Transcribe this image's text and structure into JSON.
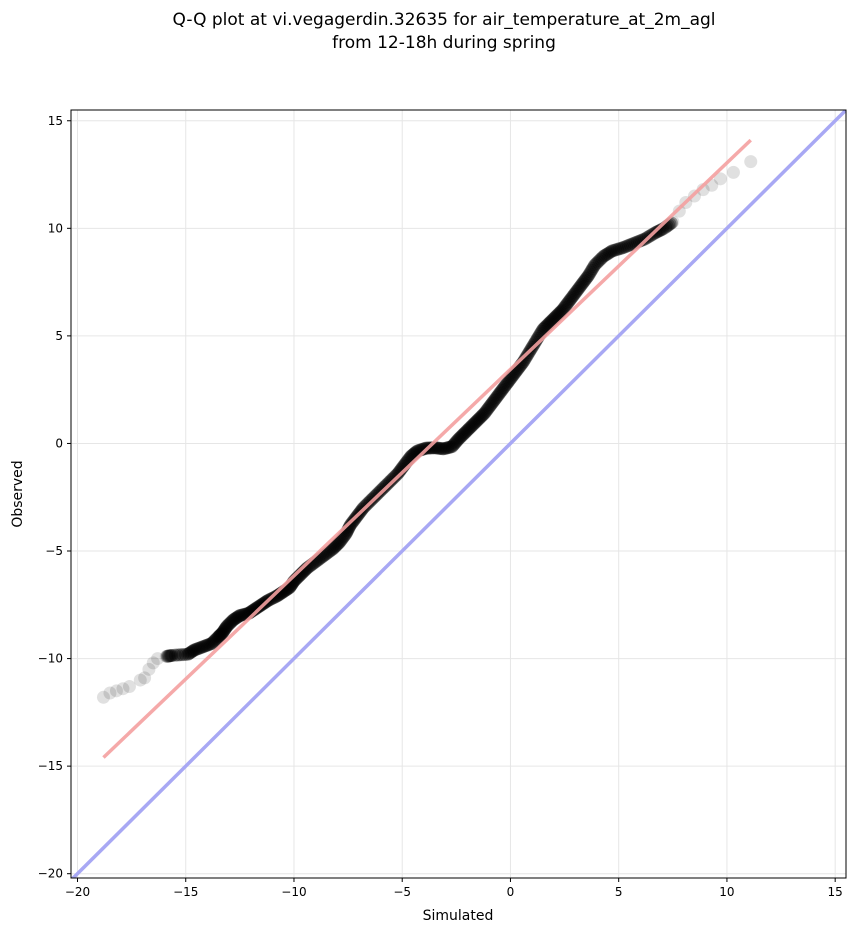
{
  "chart_data": {
    "type": "scatter",
    "title_line1": "Q-Q plot at vi.vegagerdin.32635 for air_temperature_at_2m_agl",
    "title_line2": "from 12-18h during spring",
    "xlabel": "Simulated",
    "ylabel": "Observed",
    "xlim": [
      -20.3,
      15.5
    ],
    "ylim": [
      -20.2,
      15.5
    ],
    "xticks": [
      -20,
      -15,
      -10,
      -5,
      0,
      5,
      10,
      15
    ],
    "yticks": [
      -20,
      -15,
      -10,
      -5,
      0,
      5,
      10,
      15
    ],
    "xtick_labels": [
      "−20",
      "−15",
      "−10",
      "−5",
      "0",
      "5",
      "10",
      "15"
    ],
    "ytick_labels": [
      "−20",
      "−15",
      "−10",
      "−5",
      "0",
      "5",
      "10",
      "15"
    ],
    "grid": true,
    "legend": "none",
    "colors": {
      "points": "#000000",
      "fit_line": "#f4a0a0",
      "identity_line": "#a8a8f4",
      "grid": "#e6e6e6"
    },
    "series": [
      {
        "kind": "quantiles",
        "points": [
          [
            -18.8,
            -11.8
          ],
          [
            -18.5,
            -11.6
          ],
          [
            -18.2,
            -11.5
          ],
          [
            -17.9,
            -11.4
          ],
          [
            -17.6,
            -11.3
          ],
          [
            -17.1,
            -11.0
          ],
          [
            -16.9,
            -10.9
          ],
          [
            -16.7,
            -10.5
          ],
          [
            -16.5,
            -10.2
          ],
          [
            -16.3,
            -10.0
          ],
          [
            -15.9,
            -9.9
          ],
          [
            -15.6,
            -9.85
          ],
          [
            -14.9,
            -9.8
          ],
          [
            -14.6,
            -9.6
          ],
          [
            -14.2,
            -9.45
          ],
          [
            -13.8,
            -9.3
          ],
          [
            -13.5,
            -9.0
          ],
          [
            -13.3,
            -8.8
          ],
          [
            -13.1,
            -8.5
          ],
          [
            -12.8,
            -8.2
          ],
          [
            -12.5,
            -8.0
          ],
          [
            -12.1,
            -7.9
          ],
          [
            -11.8,
            -7.7
          ],
          [
            -11.5,
            -7.5
          ],
          [
            -11.2,
            -7.3
          ],
          [
            -10.8,
            -7.1
          ],
          [
            -10.5,
            -6.9
          ],
          [
            -10.2,
            -6.7
          ],
          [
            -10.0,
            -6.4
          ],
          [
            -9.7,
            -6.1
          ],
          [
            -9.4,
            -5.8
          ],
          [
            -9.0,
            -5.5
          ],
          [
            -8.6,
            -5.2
          ],
          [
            -8.2,
            -4.9
          ],
          [
            -7.9,
            -4.6
          ],
          [
            -7.6,
            -4.2
          ],
          [
            -7.4,
            -3.8
          ],
          [
            -7.1,
            -3.4
          ],
          [
            -6.8,
            -3.0
          ],
          [
            -6.4,
            -2.6
          ],
          [
            -6.0,
            -2.2
          ],
          [
            -5.6,
            -1.8
          ],
          [
            -5.2,
            -1.4
          ],
          [
            -4.9,
            -1.0
          ],
          [
            -4.6,
            -0.6
          ],
          [
            -4.3,
            -0.35
          ],
          [
            -3.9,
            -0.22
          ],
          [
            -3.5,
            -0.2
          ],
          [
            -3.1,
            -0.25
          ],
          [
            -2.7,
            -0.15
          ],
          [
            -2.4,
            0.2
          ],
          [
            -2.1,
            0.5
          ],
          [
            -1.8,
            0.8
          ],
          [
            -1.5,
            1.1
          ],
          [
            -1.2,
            1.4
          ],
          [
            -0.9,
            1.8
          ],
          [
            -0.6,
            2.2
          ],
          [
            -0.3,
            2.6
          ],
          [
            0.0,
            3.0
          ],
          [
            0.3,
            3.4
          ],
          [
            0.6,
            3.8
          ],
          [
            0.9,
            4.3
          ],
          [
            1.2,
            4.8
          ],
          [
            1.5,
            5.3
          ],
          [
            1.8,
            5.6
          ],
          [
            2.1,
            5.9
          ],
          [
            2.4,
            6.2
          ],
          [
            2.7,
            6.6
          ],
          [
            3.0,
            7.0
          ],
          [
            3.3,
            7.4
          ],
          [
            3.6,
            7.8
          ],
          [
            3.9,
            8.3
          ],
          [
            4.3,
            8.7
          ],
          [
            4.7,
            8.95
          ],
          [
            5.2,
            9.1
          ],
          [
            5.7,
            9.3
          ],
          [
            6.2,
            9.5
          ],
          [
            6.7,
            9.8
          ],
          [
            7.1,
            10.0
          ],
          [
            7.5,
            10.3
          ],
          [
            7.8,
            10.8
          ],
          [
            8.1,
            11.2
          ],
          [
            8.5,
            11.5
          ],
          [
            8.9,
            11.8
          ],
          [
            9.3,
            12.0
          ],
          [
            9.7,
            12.3
          ],
          [
            10.3,
            12.6
          ],
          [
            11.1,
            13.1
          ]
        ]
      }
    ],
    "fit_line": {
      "x": [
        -18.8,
        11.1
      ],
      "y": [
        -14.6,
        14.1
      ]
    },
    "identity_line": {
      "x": [
        -20.3,
        15.5
      ],
      "y": [
        -20.3,
        15.5
      ]
    }
  }
}
